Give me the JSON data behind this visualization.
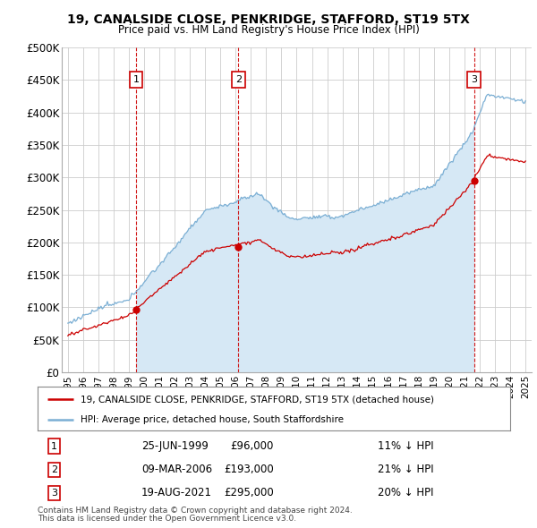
{
  "title": "19, CANALSIDE CLOSE, PENKRIDGE, STAFFORD, ST19 5TX",
  "subtitle": "Price paid vs. HM Land Registry's House Price Index (HPI)",
  "ylim": [
    0,
    500000
  ],
  "yticks": [
    0,
    50000,
    100000,
    150000,
    200000,
    250000,
    300000,
    350000,
    400000,
    450000,
    500000
  ],
  "ytick_labels": [
    "£0",
    "£50K",
    "£100K",
    "£150K",
    "£200K",
    "£250K",
    "£300K",
    "£350K",
    "£400K",
    "£450K",
    "£500K"
  ],
  "hpi_color": "#7bafd4",
  "price_color": "#cc0000",
  "shade_color": "#d6e8f5",
  "dashed_color": "#cc0000",
  "background_color": "#ffffff",
  "grid_color": "#cccccc",
  "legend_line1": "19, CANALSIDE CLOSE, PENKRIDGE, STAFFORD, ST19 5TX (detached house)",
  "legend_line2": "HPI: Average price, detached house, South Staffordshire",
  "transactions": [
    {
      "num": 1,
      "date": "25-JUN-1999",
      "price": 96000,
      "hpi_diff": "11% ↓ HPI",
      "x_year": 1999.47
    },
    {
      "num": 2,
      "date": "09-MAR-2006",
      "price": 193000,
      "hpi_diff": "21% ↓ HPI",
      "x_year": 2006.18
    },
    {
      "num": 3,
      "date": "19-AUG-2021",
      "price": 295000,
      "hpi_diff": "20% ↓ HPI",
      "x_year": 2021.63
    }
  ],
  "footnote1": "Contains HM Land Registry data © Crown copyright and database right 2024.",
  "footnote2": "This data is licensed under the Open Government Licence v3.0.",
  "xlim_start": 1994.6,
  "xlim_end": 2025.4,
  "marker_y": 450000,
  "box_color_border": "#cc0000",
  "box_color_fill": "#ffffff",
  "box_text_color": "#000000"
}
